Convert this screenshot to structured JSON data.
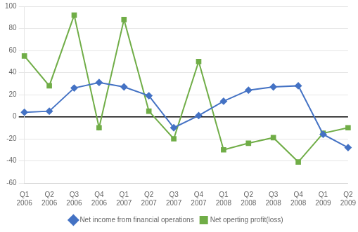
{
  "chart_data": {
    "type": "line",
    "categories": [
      "Q1\n2006",
      "Q2\n2006",
      "Q3\n2006",
      "Q4\n2006",
      "Q1\n2007",
      "Q2\n2007",
      "Q3\n2007",
      "Q4\n2007",
      "Q1\n2008",
      "Q2\n2008",
      "Q3\n2008",
      "Q4\n2008",
      "Q1\n2009",
      "Q2\n2009"
    ],
    "series": [
      {
        "name": "Net income from financial operations",
        "color": "#4472C4",
        "marker": "diamond",
        "values": [
          4,
          5,
          26,
          31,
          27,
          19,
          -10,
          1,
          14,
          24,
          27,
          28,
          -16,
          -28
        ]
      },
      {
        "name": "Net operting profit(loss)",
        "color": "#70AD47",
        "marker": "square",
        "values": [
          55,
          28,
          92,
          -10,
          88,
          5,
          -20,
          50,
          -30,
          -24,
          -19,
          -41,
          -15,
          -10
        ]
      }
    ],
    "ylim": [
      -60,
      100
    ],
    "yticks": [
      -60,
      -40,
      -20,
      0,
      20,
      40,
      60,
      80,
      100
    ],
    "grid": true,
    "legend": "bottom"
  }
}
